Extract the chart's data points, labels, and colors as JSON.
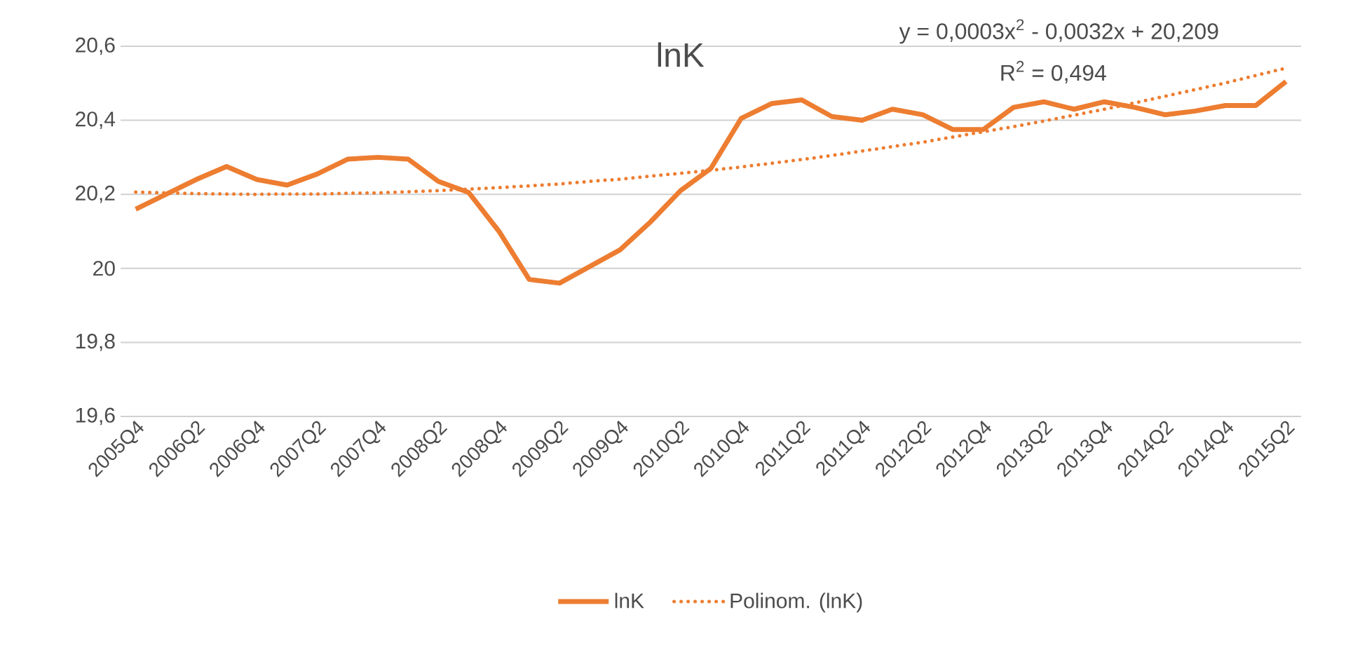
{
  "chart_data": {
    "type": "line",
    "title": "lnK",
    "categories": [
      "2005Q4",
      null,
      "2006Q2",
      null,
      "2006Q4",
      null,
      "2007Q2",
      null,
      "2007Q4",
      null,
      "2008Q2",
      null,
      "2008Q4",
      null,
      "2009Q2",
      null,
      "2009Q4",
      null,
      "2010Q2",
      null,
      "2010Q4",
      null,
      "2011Q2",
      null,
      "2011Q4",
      null,
      "2012Q2",
      null,
      "2012Q4",
      null,
      "2013Q2",
      null,
      "2013Q4",
      null,
      "2014Q2",
      null,
      "2014Q4",
      null,
      "2015Q2"
    ],
    "series": [
      {
        "name": "lnK",
        "color": "#ed7d31",
        "line_style": "solid",
        "values": [
          20.16,
          20.2,
          20.24,
          20.275,
          20.24,
          20.225,
          20.255,
          20.295,
          20.3,
          20.295,
          20.235,
          20.205,
          20.1,
          19.97,
          19.96,
          20.005,
          20.05,
          20.125,
          20.21,
          20.27,
          20.405,
          20.445,
          20.455,
          20.41,
          20.4,
          20.43,
          20.415,
          20.375,
          20.375,
          20.435,
          20.45,
          20.43,
          20.45,
          20.435,
          20.415,
          20.425,
          20.44,
          20.44,
          20.505
        ]
      },
      {
        "name": "Polinom. (lnK)",
        "color": "#ed7d31",
        "line_style": "dotted",
        "values": [
          20.206,
          20.204,
          20.202,
          20.201,
          20.2,
          20.201,
          20.201,
          20.203,
          20.204,
          20.207,
          20.21,
          20.214,
          20.218,
          20.223,
          20.228,
          20.235,
          20.241,
          20.249,
          20.257,
          20.265,
          20.274,
          20.284,
          20.294,
          20.305,
          20.317,
          20.329,
          20.341,
          20.355,
          20.369,
          20.383,
          20.398,
          20.414,
          20.43,
          20.447,
          20.465,
          20.483,
          20.501,
          20.521,
          20.541
        ]
      }
    ],
    "ylim": [
      19.6,
      20.6
    ],
    "yticks": [
      {
        "value": 19.6,
        "label": "19,6"
      },
      {
        "value": 19.8,
        "label": "19,8"
      },
      20,
      {
        "value": 20.2,
        "label": "20,2"
      },
      {
        "value": 20.4,
        "label": "20,4"
      },
      {
        "value": 20.6,
        "label": "20,6"
      }
    ],
    "grid": "y",
    "legend": "bottom",
    "annotations": [
      "y = 0,0003x$^{2}$ - 0,0032x + 20,209",
      "R$^{2}$ = 0,494"
    ]
  }
}
